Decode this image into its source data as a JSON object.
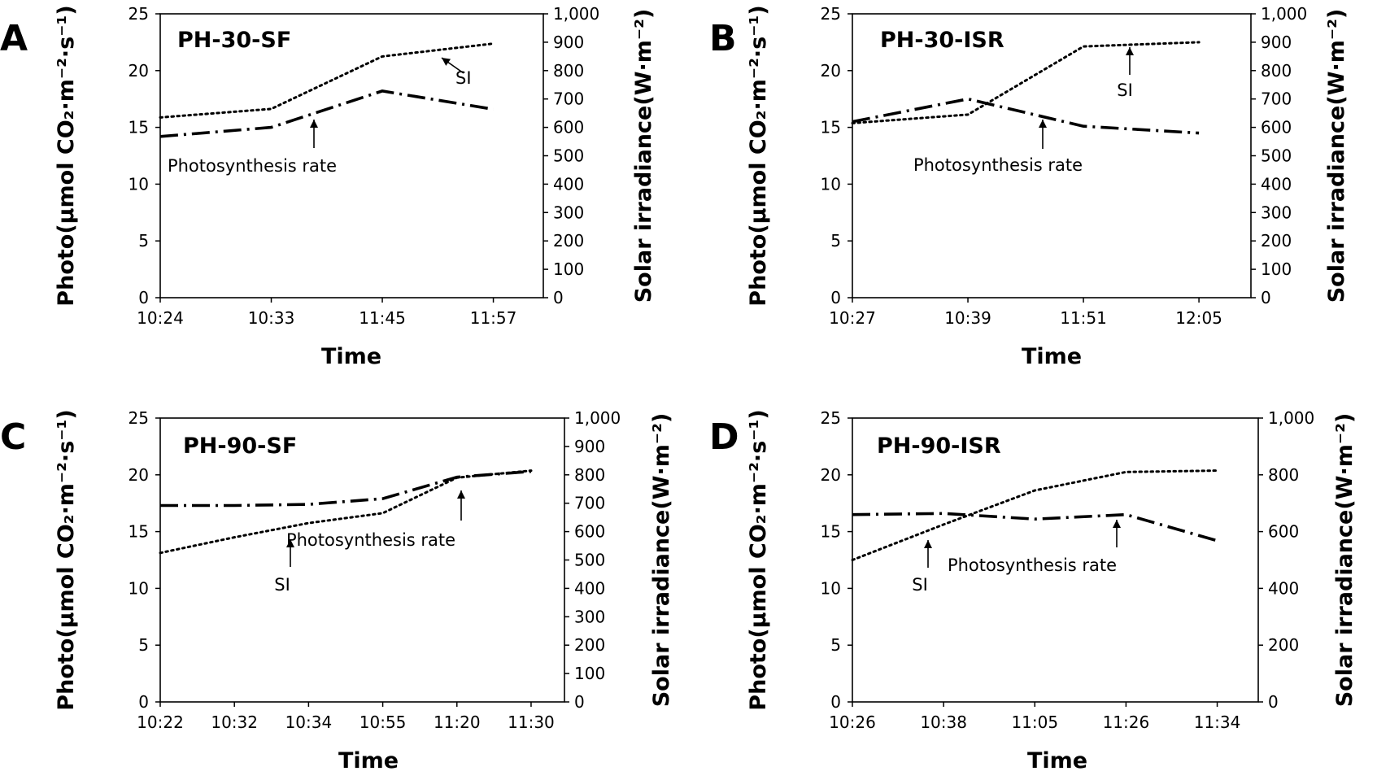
{
  "chart_data": [
    {
      "type": "line",
      "panel_label": "A",
      "title": "PH-30-SF",
      "xlabel": "Time",
      "ylabel": "Photo(μmol CO₂·m⁻²·s⁻¹)",
      "y2label": "Solar irradiance(W·m⁻²)",
      "categories": [
        "10:24",
        "10:33",
        "11:45",
        "11:57"
      ],
      "ylim": [
        0,
        25
      ],
      "y_ticks": [
        "0",
        "5",
        "10",
        "15",
        "20",
        "25"
      ],
      "y2lim": [
        0,
        1000
      ],
      "y2_ticks": [
        "0",
        "100",
        "200",
        "300",
        "400",
        "500",
        "600",
        "700",
        "800",
        "900",
        "1,000"
      ],
      "series": [
        {
          "name": "Photosynthesis rate",
          "axis": "left",
          "style": "dash-dot",
          "values": [
            14.2,
            15.0,
            18.2,
            16.6
          ]
        },
        {
          "name": "SI",
          "axis": "right",
          "style": "dotted",
          "values": [
            635,
            665,
            850,
            895
          ]
        }
      ],
      "annotations": [
        {
          "text": "Photosynthesis rate",
          "target": "Photosynthesis rate"
        },
        {
          "text": "SI",
          "target": "SI"
        }
      ],
      "grid": false
    },
    {
      "type": "line",
      "panel_label": "B",
      "title": "PH-30-ISR",
      "xlabel": "Time",
      "ylabel": "Photo(μmol CO₂·m⁻²·s⁻¹)",
      "y2label": "Solar irradiance(W·m⁻²)",
      "categories": [
        "10:27",
        "10:39",
        "11:51",
        "12:05"
      ],
      "ylim": [
        0,
        25
      ],
      "y_ticks": [
        "0",
        "5",
        "10",
        "15",
        "20",
        "25"
      ],
      "y2lim": [
        0,
        1000
      ],
      "y2_ticks": [
        "0",
        "100",
        "200",
        "300",
        "400",
        "500",
        "600",
        "700",
        "800",
        "900",
        "1,000"
      ],
      "series": [
        {
          "name": "Photosynthesis rate",
          "axis": "left",
          "style": "dash-dot",
          "values": [
            15.5,
            17.5,
            15.1,
            14.5
          ]
        },
        {
          "name": "SI",
          "axis": "right",
          "style": "dotted",
          "values": [
            615,
            645,
            885,
            900
          ]
        }
      ],
      "annotations": [
        {
          "text": "Photosynthesis rate",
          "target": "Photosynthesis rate"
        },
        {
          "text": "SI",
          "target": "SI"
        }
      ],
      "grid": false
    },
    {
      "type": "line",
      "panel_label": "C",
      "title": "PH-90-SF",
      "xlabel": "Time",
      "ylabel": "Photo(μmol CO₂·m⁻²·s⁻¹)",
      "y2label": "Solar irradiance(W·m⁻²)",
      "categories": [
        "10:22",
        "10:32",
        "10:34",
        "10:55",
        "11:20",
        "11:30"
      ],
      "ylim": [
        0,
        25
      ],
      "y_ticks": [
        "0",
        "5",
        "10",
        "15",
        "20",
        "25"
      ],
      "y2lim": [
        0,
        1000
      ],
      "y2_ticks": [
        "0",
        "100",
        "200",
        "300",
        "400",
        "500",
        "600",
        "700",
        "800",
        "900",
        "1,000"
      ],
      "series": [
        {
          "name": "Photosynthesis rate",
          "axis": "left",
          "style": "dash-dot",
          "values": [
            17.3,
            17.3,
            17.4,
            17.9,
            19.8,
            20.3
          ]
        },
        {
          "name": "SI",
          "axis": "right",
          "style": "dotted",
          "values": [
            525,
            580,
            630,
            665,
            790,
            815
          ]
        }
      ],
      "annotations": [
        {
          "text": "Photosynthesis rate",
          "target": "Photosynthesis rate"
        },
        {
          "text": "SI",
          "target": "SI"
        }
      ],
      "grid": false
    },
    {
      "type": "line",
      "panel_label": "D",
      "title": "PH-90-ISR",
      "xlabel": "Time",
      "ylabel": "Photo(μmol CO₂·m⁻²·s⁻¹)",
      "y2label": "Solar irradiance(W·m⁻²)",
      "categories": [
        "10:26",
        "10:38",
        "11:05",
        "11:26",
        "11:34"
      ],
      "ylim": [
        0,
        25
      ],
      "y_ticks": [
        "0",
        "5",
        "10",
        "15",
        "20",
        "25"
      ],
      "y2lim": [
        0,
        1000
      ],
      "y2_ticks": [
        "0",
        "200",
        "400",
        "600",
        "800",
        "1,000"
      ],
      "series": [
        {
          "name": "Photosynthesis rate",
          "axis": "left",
          "style": "dash-dot",
          "values": [
            16.5,
            16.6,
            16.1,
            16.5,
            14.2
          ]
        },
        {
          "name": "SI",
          "axis": "right",
          "style": "dotted",
          "values": [
            500,
            625,
            745,
            810,
            815
          ]
        }
      ],
      "annotations": [
        {
          "text": "Photosynthesis rate",
          "target": "Photosynthesis rate"
        },
        {
          "text": "SI",
          "target": "SI"
        }
      ],
      "grid": false
    }
  ]
}
